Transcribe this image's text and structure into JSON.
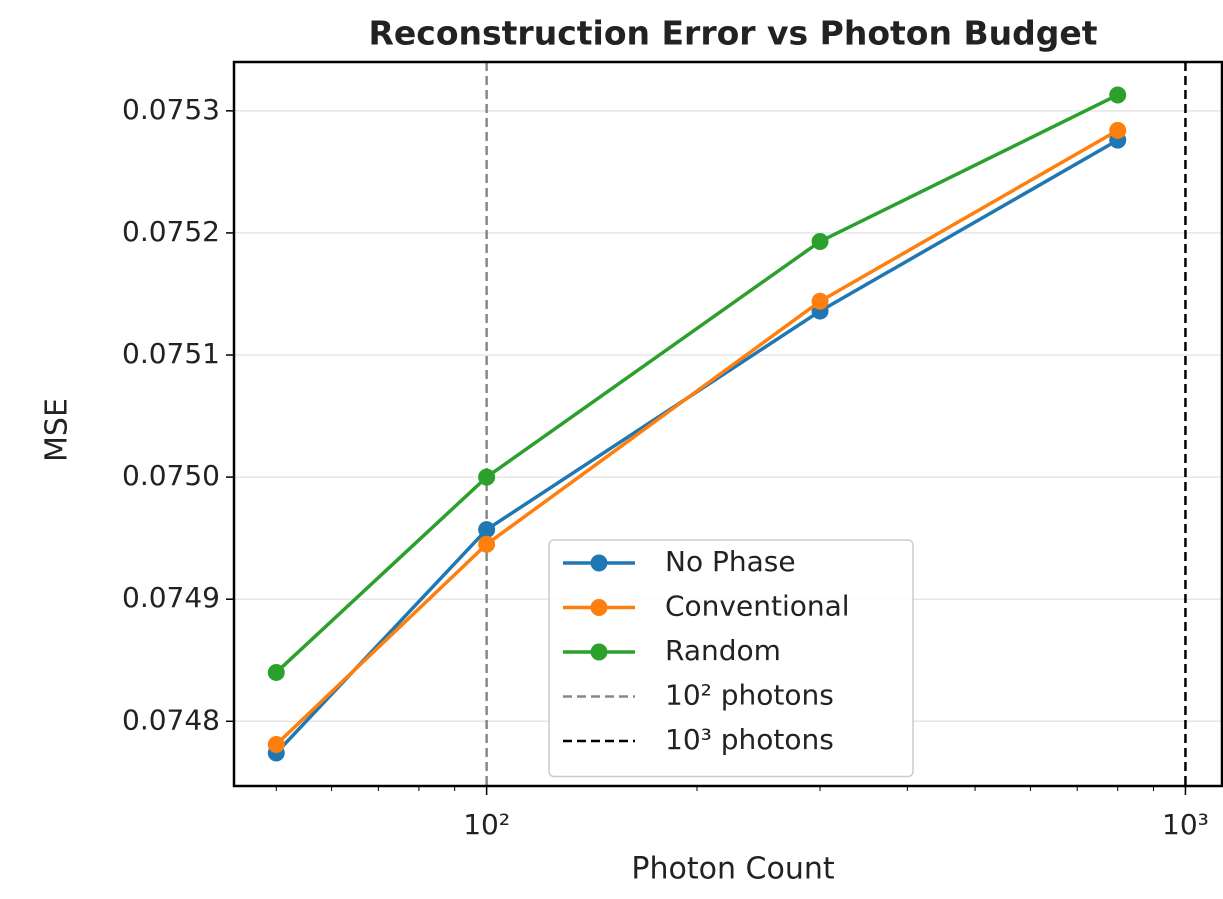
{
  "chart_data": {
    "type": "line",
    "title": "Reconstruction Error vs Photon Budget",
    "xlabel": "Photon Count",
    "ylabel": "MSE",
    "x": [
      50,
      100,
      300,
      800
    ],
    "xscale": "log",
    "xlim": [
      43.5,
      1128
    ],
    "xticks": [
      {
        "value": 100,
        "label": "10²"
      },
      {
        "value": 1000,
        "label": "10³"
      }
    ],
    "xminor_ticks": [
      50,
      60,
      70,
      80,
      90,
      200,
      300,
      400,
      500,
      600,
      700,
      800,
      900
    ],
    "ylim": [
      0.074747,
      0.07534
    ],
    "yticks": [
      0.0748,
      0.0749,
      {
        "value": 0.075,
        "label": "0.0750"
      },
      0.0751,
      0.0752,
      0.0753
    ],
    "grid": true,
    "legend": "lower right",
    "series": [
      {
        "name": "No Phase",
        "color": "#1f77b4",
        "values": [
          0.074774,
          0.074957,
          0.075136,
          0.075276
        ]
      },
      {
        "name": "Conventional",
        "color": "#ff7f0e",
        "values": [
          0.074781,
          0.074945,
          0.075144,
          0.075284
        ]
      },
      {
        "name": "Random",
        "color": "#2ca02c",
        "values": [
          0.07484,
          0.075,
          0.075193,
          0.075313
        ]
      }
    ],
    "vlines": [
      {
        "x": 100,
        "name": "10² photons",
        "color": "#888888",
        "style": "dashed"
      },
      {
        "x": 1000,
        "name": "10³ photons",
        "color": "#000000",
        "style": "dashed"
      }
    ]
  }
}
